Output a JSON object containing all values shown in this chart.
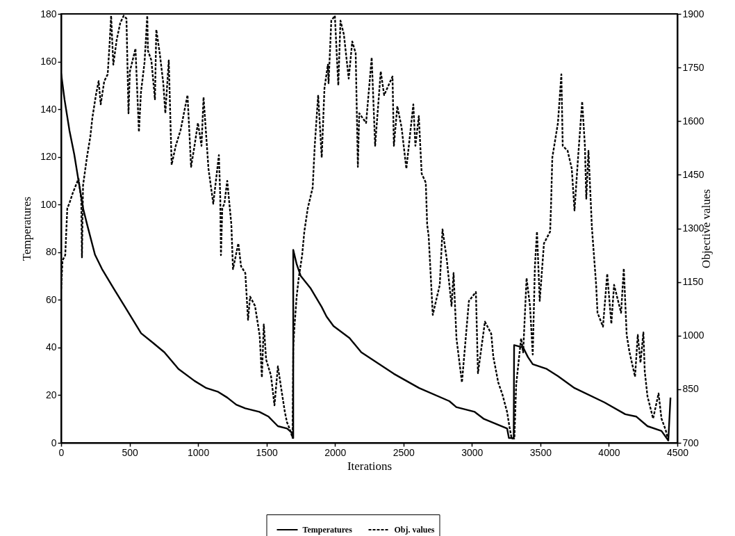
{
  "chart_data": {
    "type": "line",
    "xlabel": "Iterations",
    "ylabel": "Temperatures",
    "y2label": "Objective values",
    "xlim": [
      0,
      4500
    ],
    "xticks": [
      0,
      500,
      1000,
      1500,
      2000,
      2500,
      3000,
      3500,
      4000,
      4500
    ],
    "ylim": [
      0,
      180
    ],
    "yticks": [
      0,
      20,
      40,
      60,
      80,
      100,
      120,
      140,
      160,
      180
    ],
    "y2lim": [
      700,
      1900
    ],
    "y2ticks": [
      700,
      850,
      1000,
      1150,
      1300,
      1450,
      1600,
      1750,
      1900
    ],
    "legend": "bottom",
    "series": [
      {
        "name": "Temperatures",
        "color": "#000000",
        "line_style": "solid",
        "x": [
          0,
          25,
          61,
          96,
          127,
          162,
          188,
          247,
          298,
          381,
          467,
          584,
          670,
          754,
          857,
          974,
          1060,
          1143,
          1213,
          1279,
          1345,
          1447,
          1515,
          1583,
          1650,
          1690,
          1695,
          1695,
          1720,
          1750,
          1820,
          1903,
          1938,
          1989,
          2106,
          2192,
          2429,
          2614,
          2835,
          2886,
          3020,
          3088,
          3257,
          3270,
          3305,
          3308,
          3374,
          3409,
          3444,
          3546,
          3628,
          3749,
          3967,
          4120,
          4201,
          4282,
          4384,
          4434,
          4450
        ],
        "values": [
          155,
          144,
          131,
          121,
          110,
          98,
          92,
          79,
          73,
          65,
          57,
          46,
          42,
          38,
          31,
          26,
          23,
          21.5,
          19,
          16,
          14.5,
          13,
          11,
          7,
          6,
          4,
          2,
          81,
          75,
          70,
          65,
          57,
          53,
          49,
          44,
          38,
          29,
          23,
          17.5,
          15,
          13,
          10,
          6,
          2,
          2,
          41,
          40,
          36,
          33,
          31,
          28,
          23,
          17,
          12,
          11,
          7,
          5,
          1,
          19
        ]
      },
      {
        "name": "Obj. values",
        "color": "#000000",
        "line_style": "dashed",
        "axis": "y2",
        "x": [
          0,
          10,
          30,
          45,
          60,
          86,
          127,
          147,
          152,
          160,
          188,
          213,
          228,
          254,
          274,
          289,
          315,
          340,
          355,
          365,
          381,
          406,
          432,
          457,
          477,
          492,
          502,
          543,
          568,
          583,
          609,
          629,
          634,
          659,
          685,
          695,
          720,
          746,
          761,
          786,
          807,
          837,
          873,
          923,
          949,
          974,
          999,
          1025,
          1040,
          1076,
          1111,
          1152,
          1162,
          1167,
          1177,
          1192,
          1213,
          1243,
          1255,
          1294,
          1314,
          1345,
          1365,
          1380,
          1416,
          1450,
          1466,
          1480,
          1497,
          1532,
          1558,
          1583,
          1608,
          1634,
          1649,
          1669,
          1690,
          1695,
          1705,
          1720,
          1735,
          1760,
          1776,
          1801,
          1837,
          1852,
          1877,
          1903,
          1923,
          1948,
          1953,
          1973,
          1999,
          2024,
          2040,
          2065,
          2100,
          2126,
          2151,
          2167,
          2177,
          2227,
          2268,
          2293,
          2334,
          2359,
          2420,
          2430,
          2455,
          2486,
          2521,
          2572,
          2587,
          2612,
          2633,
          2663,
          2673,
          2684,
          2714,
          2765,
          2785,
          2816,
          2851,
          2866,
          2887,
          2927,
          2978,
          3029,
          3044,
          3095,
          3141,
          3156,
          3192,
          3222,
          3257,
          3273,
          3290,
          3310,
          3323,
          3359,
          3374,
          3399,
          3424,
          3444,
          3460,
          3475,
          3495,
          3526,
          3571,
          3577,
          3587,
          3628,
          3653,
          3663,
          3699,
          3729,
          3749,
          3775,
          3805,
          3825,
          3835,
          3851,
          3876,
          3907,
          3917,
          3957,
          3988,
          4018,
          4038,
          4089,
          4109,
          4130,
          4150,
          4191,
          4211,
          4231,
          4252,
          4262,
          4282,
          4323,
          4363,
          4384,
          4414,
          4434
        ],
        "values": [
          1130,
          1210,
          1225,
          1356,
          1370,
          1400,
          1439,
          1381,
          1219,
          1420,
          1498,
          1556,
          1609,
          1673,
          1712,
          1647,
          1712,
          1731,
          1823,
          1895,
          1758,
          1828,
          1875,
          1895,
          1887,
          1622,
          1739,
          1803,
          1570,
          1681,
          1764,
          1895,
          1797,
          1770,
          1661,
          1856,
          1790,
          1706,
          1622,
          1770,
          1478,
          1531,
          1576,
          1673,
          1472,
          1531,
          1595,
          1531,
          1667,
          1467,
          1369,
          1505,
          1389,
          1225,
          1356,
          1369,
          1433,
          1311,
          1186,
          1258,
          1194,
          1175,
          1044,
          1109,
          1083,
          1000,
          883,
          1031,
          933,
          889,
          805,
          914,
          850,
          786,
          758,
          739,
          714,
          967,
          1031,
          1109,
          1161,
          1225,
          1291,
          1356,
          1414,
          1531,
          1673,
          1498,
          1692,
          1758,
          1706,
          1881,
          1895,
          1700,
          1881,
          1842,
          1719,
          1823,
          1790,
          1472,
          1622,
          1595,
          1778,
          1531,
          1739,
          1673,
          1725,
          1531,
          1642,
          1583,
          1467,
          1647,
          1531,
          1614,
          1453,
          1428,
          1311,
          1278,
          1058,
          1142,
          1297,
          1214,
          1083,
          1175,
          992,
          869,
          1097,
          1122,
          895,
          1039,
          1005,
          941,
          869,
          836,
          786,
          747,
          712,
          712,
          863,
          992,
          953,
          1161,
          1083,
          947,
          1194,
          1291,
          1097,
          1258,
          1291,
          1356,
          1498,
          1595,
          1731,
          1531,
          1517,
          1467,
          1350,
          1498,
          1655,
          1531,
          1383,
          1517,
          1303,
          1142,
          1064,
          1025,
          1173,
          1033,
          1142,
          1064,
          1188,
          1002,
          955,
          885,
          1002,
          924,
          1009,
          900,
          830,
          768,
          838,
          768,
          737,
          706
        ]
      }
    ]
  }
}
